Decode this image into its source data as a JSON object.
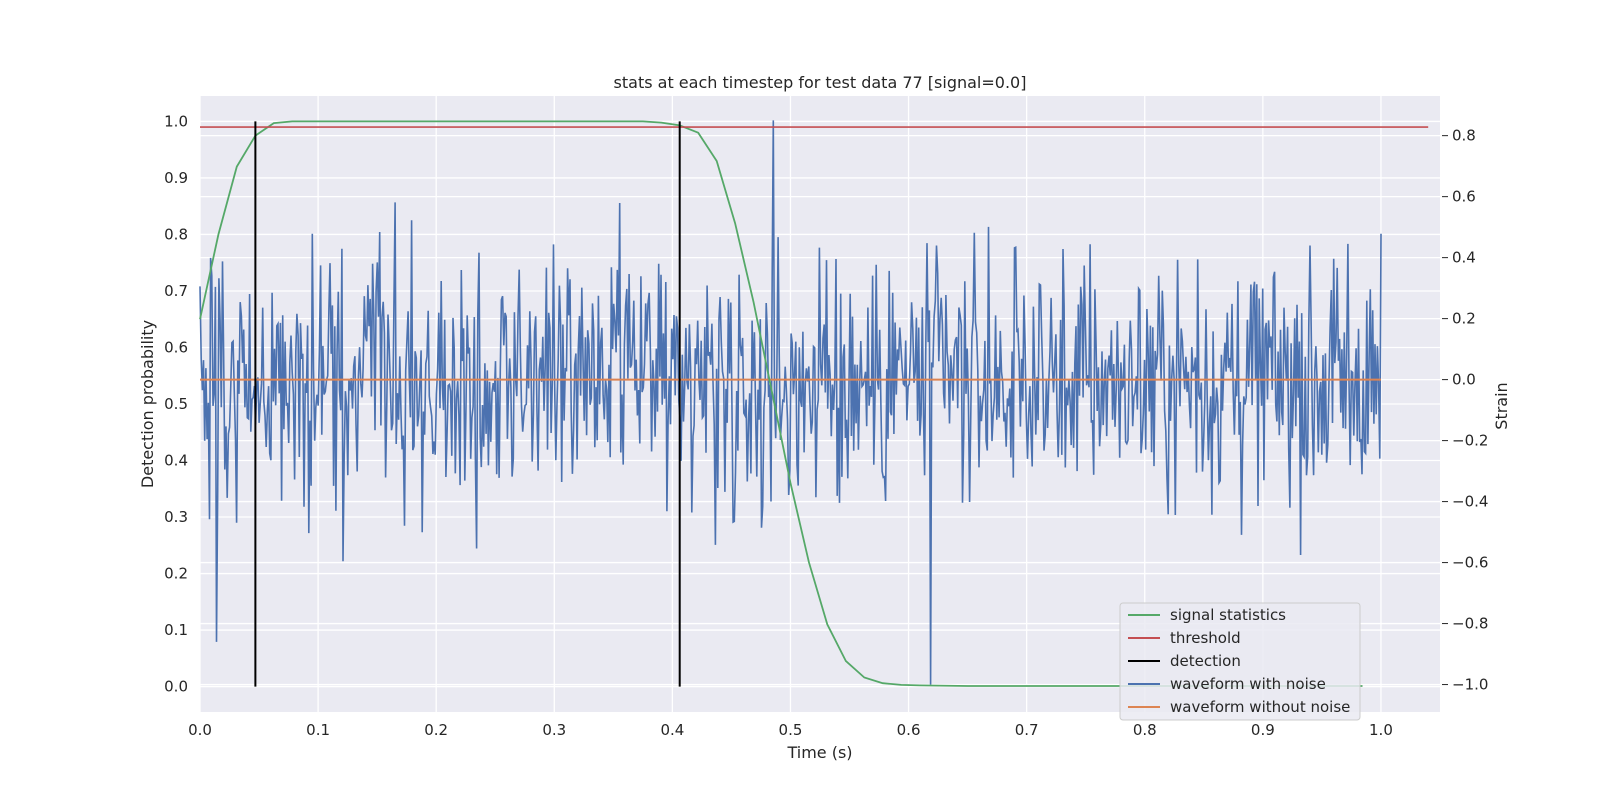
{
  "chart_data": {
    "type": "line",
    "title": "stats at each timestep for test data 77 [signal=0.0]",
    "xlabel": "Time (s)",
    "ylabel_left": "Detection probability",
    "ylabel_right": "Strain",
    "xlim": [
      0.0,
      1.05
    ],
    "ylim_left": [
      -0.045,
      1.045
    ],
    "ylim_right": [
      -1.09,
      0.93
    ],
    "x_ticks": [
      "0.0",
      "0.1",
      "0.2",
      "0.3",
      "0.4",
      "0.5",
      "0.6",
      "0.7",
      "0.8",
      "0.9",
      "1.0"
    ],
    "y_left_ticks": [
      "0.0",
      "0.1",
      "0.2",
      "0.3",
      "0.4",
      "0.5",
      "0.6",
      "0.7",
      "0.8",
      "0.9",
      "1.0"
    ],
    "y_right_ticks": [
      "−1.0",
      "−0.8",
      "−0.6",
      "−0.4",
      "−0.2",
      "0.0",
      "0.2",
      "0.4",
      "0.6",
      "0.8"
    ],
    "grid": true,
    "legend_position": "lower right",
    "colors": {
      "background": "#eaeaf2",
      "grid": "#ffffff",
      "signal_statistics": "#55a868",
      "threshold": "#c44e52",
      "detection": "#000000",
      "waveform_with_noise": "#4c72b0",
      "waveform_without_noise": "#dd8452"
    },
    "series": [
      {
        "name": "signal statistics",
        "axis": "left",
        "x": [
          0.0,
          0.0156,
          0.0312,
          0.0469,
          0.0625,
          0.0781,
          0.1,
          0.2,
          0.3,
          0.375,
          0.3906,
          0.4062,
          0.4219,
          0.4375,
          0.4531,
          0.4688,
          0.4844,
          0.5,
          0.5156,
          0.5312,
          0.5469,
          0.5625,
          0.5781,
          0.5938,
          0.6094,
          0.65,
          0.7,
          0.8,
          0.9,
          0.9844
        ],
        "y": [
          0.65,
          0.8,
          0.92,
          0.975,
          0.997,
          1.0,
          1.0,
          1.0,
          1.0,
          1.0,
          0.998,
          0.993,
          0.98,
          0.93,
          0.82,
          0.68,
          0.52,
          0.36,
          0.22,
          0.11,
          0.045,
          0.016,
          0.006,
          0.003,
          0.002,
          0.001,
          0.001,
          0.001,
          0.001,
          0.001
        ]
      },
      {
        "name": "threshold",
        "axis": "left",
        "x": [
          0.0,
          1.04
        ],
        "y": [
          0.99,
          0.99
        ]
      },
      {
        "name": "detection",
        "axis": "left",
        "vlines": [
          0.0469,
          0.4062
        ],
        "ymin": 0.0,
        "ymax": 1.0
      },
      {
        "name": "waveform with noise",
        "axis": "right",
        "n_points": 1000,
        "x_range": [
          0.0,
          1.0
        ],
        "y_range": [
          -1.0,
          0.85
        ]
      },
      {
        "name": "waveform without noise",
        "axis": "right",
        "x": [
          0.0,
          1.0
        ],
        "y": [
          0.0,
          0.0
        ]
      }
    ]
  }
}
